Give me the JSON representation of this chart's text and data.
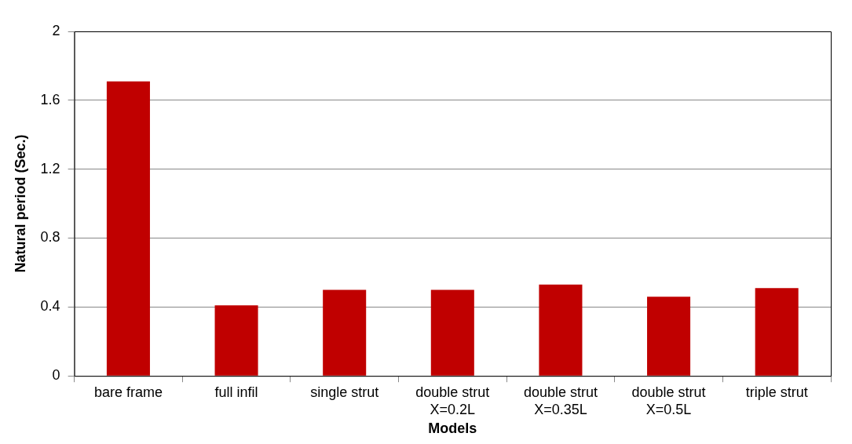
{
  "chart_data": {
    "type": "bar",
    "xlabel": "Models",
    "ylabel": "Natural period (Sec.)",
    "categories": [
      "bare frame",
      "full infil",
      "single strut",
      "double strut X=0.2L",
      "double strut X=0.35L",
      "double strut X=0.5L",
      "triple strut"
    ],
    "values": [
      1.71,
      0.41,
      0.5,
      0.5,
      0.53,
      0.46,
      0.51
    ],
    "color": "#c00000",
    "ylim": [
      0,
      2
    ],
    "yticks": [
      0,
      0.4,
      0.8,
      1.2,
      1.6,
      2
    ],
    "grid": "y",
    "legend": false
  }
}
